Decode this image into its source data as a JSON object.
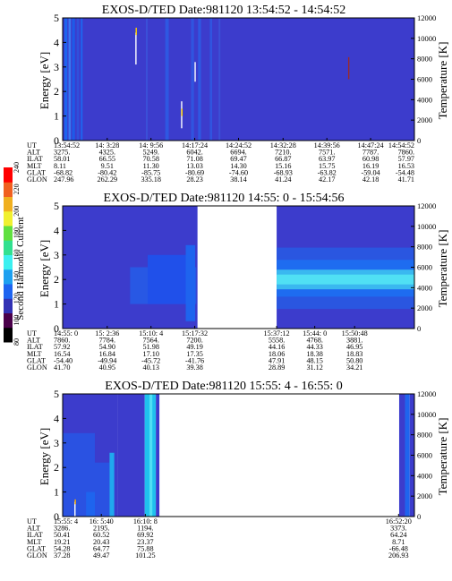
{
  "chart_data": [
    {
      "type": "heatmap",
      "title": "EXOS-D/TED   Date:981120  13:54:52 - 14:54:52",
      "ylabel": "Energy [eV]",
      "y2label": "Temperature [K]",
      "ylim": [
        0,
        5
      ],
      "y2lim": [
        0,
        12000
      ],
      "yticks": [
        "0",
        "1",
        "2",
        "3",
        "4",
        "5"
      ],
      "y2ticks": [
        "0",
        "2000",
        "4000",
        "6000",
        "8000",
        "10000",
        "12000"
      ],
      "xlim_min": [
        0,
        60
      ],
      "background": "#3c3ccc",
      "bands": [
        {
          "x0": 0.3,
          "x1": 0.8,
          "y0": 0,
          "y1": 5,
          "color": "#1e64ee"
        },
        {
          "x0": 1.0,
          "x1": 1.4,
          "y0": 0,
          "y1": 5,
          "color": "#3a78f2"
        },
        {
          "x0": 1.6,
          "x1": 2.1,
          "y0": 0,
          "y1": 5,
          "color": "#1e5ae8"
        },
        {
          "x0": 2.4,
          "x1": 2.8,
          "y0": 0,
          "y1": 5,
          "color": "#3050dc"
        },
        {
          "x0": 3.1,
          "x1": 3.4,
          "y0": 0,
          "y1": 5,
          "color": "#1e64ee"
        },
        {
          "x0": 17.5,
          "x1": 18.1,
          "y0": 0,
          "y1": 5,
          "color": "#2e58e2"
        },
        {
          "x0": 21.9,
          "x1": 22.4,
          "y0": 0,
          "y1": 5,
          "color": "#3054e0"
        },
        {
          "x0": 23.1,
          "x1": 23.6,
          "y0": 0,
          "y1": 5,
          "color": "#2e58e2"
        },
        {
          "x0": 25.1,
          "x1": 25.5,
          "y0": 0,
          "y1": 5,
          "color": "#3054e0"
        },
        {
          "x0": 14.2,
          "x1": 14.5,
          "y0": 0,
          "y1": 5,
          "color": "#3a50d8"
        },
        {
          "x0": 26.6,
          "x1": 26.9,
          "y0": 0,
          "y1": 5,
          "color": "#3a50d8"
        }
      ],
      "spikes": [
        {
          "x": 12.5,
          "y0": 3.1,
          "y1": 4.4,
          "color": "#ffffff"
        },
        {
          "x": 12.55,
          "y0": 4.3,
          "y1": 4.6,
          "color": "#ffd000"
        },
        {
          "x": 20.3,
          "y0": 0.5,
          "y1": 1.6,
          "color": "#ffffff"
        },
        {
          "x": 20.35,
          "y0": 1.0,
          "y1": 1.3,
          "color": "#ffd000"
        },
        {
          "x": 22.6,
          "y0": 2.4,
          "y1": 3.2,
          "color": "#ffffff"
        },
        {
          "x": 48.8,
          "y0": 2.5,
          "y1": 3.4,
          "color": "#9a2a2a"
        }
      ],
      "rows": [
        {
          "label": "UT",
          "values": [
            "13:54:52",
            "14: 3:28",
            "14: 9:56",
            "14:17:24",
            "14:24:52",
            "14:32:28",
            "14:39:56",
            "14:47:24",
            "14:54:52"
          ]
        },
        {
          "label": "ALT",
          "values": [
            "3275.",
            "4325.",
            "5249.",
            "6042.",
            "6694.",
            "7210.",
            "7571.",
            "7787.",
            "7860."
          ]
        },
        {
          "label": "ILAT",
          "values": [
            "58.01",
            "66.55",
            "70.58",
            "71.08",
            "69.47",
            "66.87",
            "63.97",
            "60.98",
            "57.97"
          ]
        },
        {
          "label": "MLT",
          "values": [
            "8.11",
            "9.51",
            "11.30",
            "13.03",
            "14.30",
            "15.16",
            "15.75",
            "16.19",
            "16.53"
          ]
        },
        {
          "label": "GLAT",
          "values": [
            "-68.82",
            "-80.42",
            "-85.75",
            "-80.69",
            "-74.60",
            "-68.93",
            "-63.82",
            "-59.04",
            "-54.48"
          ]
        },
        {
          "label": "GLON",
          "values": [
            "247.96",
            "262.29",
            "335.18",
            "28.23",
            "38.14",
            "41.24",
            "42.17",
            "42.18",
            "41.71"
          ]
        }
      ],
      "row_pos_min": [
        0,
        7.6,
        15.07,
        22.53,
        30,
        37.6,
        45.07,
        52.53,
        60
      ]
    },
    {
      "type": "heatmap",
      "title": "EXOS-D/TED   Date:981120  14:55: 0 - 15:54:56",
      "ylabel": "Energy [eV]",
      "y2label": "Temperature [K]",
      "ylim": [
        0,
        5
      ],
      "y2lim": [
        0,
        12000
      ],
      "yticks": [
        "0",
        "1",
        "2",
        "3",
        "4",
        "5"
      ],
      "y2ticks": [
        "0",
        "2000",
        "4000",
        "6000",
        "8000",
        "10000",
        "12000"
      ],
      "xlim_min": [
        0,
        60
      ],
      "background": "#3c3ccc",
      "gaps": [
        {
          "x0": 23.0,
          "x1": 36.5
        }
      ],
      "bands": [
        {
          "x0": 11.5,
          "x1": 22.8,
          "y0": 1.0,
          "y1": 2.5,
          "color": "#2858e4"
        },
        {
          "x0": 14.5,
          "x1": 22.5,
          "y0": 1.0,
          "y1": 3.0,
          "color": "#2050ea"
        },
        {
          "x0": 21.0,
          "x1": 22.6,
          "y0": 0.3,
          "y1": 3.4,
          "color": "#1e64ee"
        },
        {
          "x0": 36.5,
          "x1": 60,
          "y0": 0.8,
          "y1": 3.3,
          "color": "#2a56e0"
        },
        {
          "x0": 36.5,
          "x1": 60,
          "y0": 1.3,
          "y1": 2.8,
          "color": "#1e6cf0"
        },
        {
          "x0": 36.5,
          "x1": 60,
          "y0": 1.6,
          "y1": 2.4,
          "color": "#3ab8f0"
        },
        {
          "x0": 36.5,
          "x1": 60,
          "y0": 1.8,
          "y1": 2.2,
          "color": "#50e0f4"
        }
      ],
      "spikes": [],
      "rows": [
        {
          "label": "UT",
          "values": [
            "14:55: 0",
            "15: 2:36",
            "15:10: 4",
            "15:17:32",
            "15:37:12",
            "15:44: 0",
            "15:50:48"
          ]
        },
        {
          "label": "ALT",
          "values": [
            "7860.",
            "7784.",
            "7564.",
            "7200.",
            "5558.",
            "4768.",
            "3881."
          ]
        },
        {
          "label": "ILAT",
          "values": [
            "57.92",
            "54.90",
            "51.98",
            "49.19",
            "44.16",
            "44.33",
            "46.95"
          ]
        },
        {
          "label": "MLT",
          "values": [
            "16.54",
            "16.84",
            "17.10",
            "17.35",
            "18.06",
            "18.38",
            "18.83"
          ]
        },
        {
          "label": "GLAT",
          "values": [
            "-54.40",
            "-49.94",
            "-45.72",
            "-41.76",
            "47.91",
            "48.15",
            "50.80"
          ]
        },
        {
          "label": "GLON",
          "values": [
            "41.70",
            "40.95",
            "40.13",
            "39.38",
            "28.89",
            "31.12",
            "34.21"
          ]
        }
      ],
      "row_pos_min": [
        0,
        7.6,
        15.07,
        22.53,
        36.5,
        43.0,
        49.8
      ]
    },
    {
      "type": "heatmap",
      "title": "EXOS-D/TED   Date:981120  15:55: 4 - 16:55: 0",
      "ylabel": "Energy [eV]",
      "y2label": "Temperature [K]",
      "ylim": [
        0,
        5
      ],
      "y2lim": [
        0,
        12000
      ],
      "yticks": [
        "0",
        "1",
        "2",
        "3",
        "4",
        "5"
      ],
      "y2ticks": [
        "0",
        "2000",
        "4000",
        "6000",
        "8000",
        "10000",
        "12000"
      ],
      "xlim_min": [
        0,
        60
      ],
      "background": "#ffffff",
      "bands": [
        {
          "x0": 0,
          "x1": 9.4,
          "y0": 0,
          "y1": 5,
          "color": "#3c3ccc"
        },
        {
          "x0": 0,
          "x1": 5.5,
          "y0": 0,
          "y1": 3.4,
          "color": "#2a52e2"
        },
        {
          "x0": 4.0,
          "x1": 5.5,
          "y0": 0,
          "y1": 1.0,
          "color": "#1e64ee"
        },
        {
          "x0": 5.5,
          "x1": 8.0,
          "y0": 0,
          "y1": 2.2,
          "color": "#2a52e2"
        },
        {
          "x0": 8.0,
          "x1": 8.8,
          "y0": 0,
          "y1": 2.6,
          "color": "#20a8ee"
        },
        {
          "x0": 9.4,
          "x1": 14.0,
          "y0": 0,
          "y1": 5,
          "color": "#3c3ccc"
        },
        {
          "x0": 14.0,
          "x1": 15.9,
          "y0": 0,
          "y1": 5,
          "color": "#20c0ee"
        },
        {
          "x0": 14.8,
          "x1": 15.3,
          "y0": 0,
          "y1": 5,
          "color": "#50e0f4"
        },
        {
          "x0": 15.9,
          "x1": 16.5,
          "y0": 0,
          "y1": 5,
          "color": "#3c3ccc"
        },
        {
          "x0": 57.4,
          "x1": 58.4,
          "y0": 0,
          "y1": 5,
          "color": "#3c3ccc"
        },
        {
          "x0": 58.4,
          "x1": 59.2,
          "y0": 0,
          "y1": 5,
          "color": "#1e64ee"
        },
        {
          "x0": 59.2,
          "x1": 60,
          "y0": 0,
          "y1": 5,
          "color": "#3c3ccc"
        }
      ],
      "spikes": [
        {
          "x": 2.1,
          "y0": 0.0,
          "y1": 0.6,
          "color": "#ffffff"
        },
        {
          "x": 2.15,
          "y0": 0.5,
          "y1": 0.7,
          "color": "#ffb000"
        }
      ],
      "rows": [
        {
          "label": "UT",
          "values": [
            "15:55: 4",
            "16: 5:40",
            "16:10: 8",
            "16:52:20"
          ]
        },
        {
          "label": "ALT",
          "values": [
            "3286.",
            "2195.",
            "1194.",
            "3373."
          ]
        },
        {
          "label": "ILAT",
          "values": [
            "50.41",
            "60.52",
            "69.92",
            "64.24"
          ]
        },
        {
          "label": "MLT",
          "values": [
            "19.21",
            "20.43",
            "23.37",
            "8.71"
          ]
        },
        {
          "label": "GLAT",
          "values": [
            "54.28",
            "64.77",
            "75.88",
            "-66.48"
          ]
        },
        {
          "label": "GLON",
          "values": [
            "37.28",
            "49.47",
            "101.25",
            "206.93"
          ]
        }
      ],
      "row_pos_min": [
        0,
        6.6,
        14.1,
        57.3
      ]
    }
  ],
  "colorbar": {
    "label": "Second Harmonic Current",
    "ticks": [
      "80",
      "100",
      "120",
      "140",
      "160",
      "180",
      "200",
      "220",
      "240"
    ],
    "range": [
      80,
      240
    ],
    "colors": [
      "#000000",
      "#4a004a",
      "#3232b4",
      "#1e64f0",
      "#1ea0f0",
      "#3cf0f0",
      "#32e090",
      "#60e040",
      "#f0f030",
      "#f0b020",
      "#f06020",
      "#ff0000"
    ]
  }
}
